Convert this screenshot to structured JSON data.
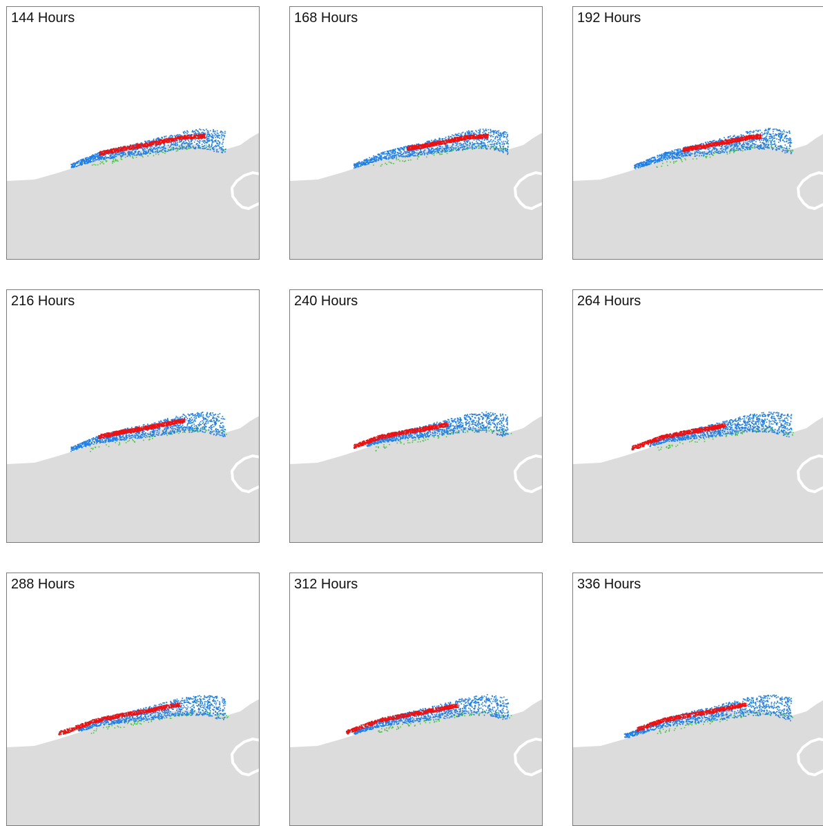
{
  "colors": {
    "land": "#dcdcdc",
    "water": "#ffffff",
    "frame": "#7a7a7a",
    "series_red": "#ee1111",
    "series_blue": "#1f7fe6",
    "series_green": "#3ec83e"
  },
  "panels": [
    {
      "label": "144 Hours",
      "red_extent": [
        0.36,
        0.78
      ],
      "blue_extent": [
        0.25,
        0.86
      ]
    },
    {
      "label": "168 Hours",
      "red_extent": [
        0.46,
        0.78
      ],
      "blue_extent": [
        0.25,
        0.86
      ]
    },
    {
      "label": "192 Hours",
      "red_extent": [
        0.43,
        0.74
      ],
      "blue_extent": [
        0.24,
        0.86
      ]
    },
    {
      "label": "216 Hours",
      "red_extent": [
        0.36,
        0.7
      ],
      "blue_extent": [
        0.25,
        0.86
      ]
    },
    {
      "label": "240 Hours",
      "red_extent": [
        0.25,
        0.62
      ],
      "blue_extent": [
        0.3,
        0.86
      ]
    },
    {
      "label": "264 Hours",
      "red_extent": [
        0.23,
        0.6
      ],
      "blue_extent": [
        0.3,
        0.86
      ]
    },
    {
      "label": "288 Hours",
      "red_extent": [
        0.2,
        0.68
      ],
      "blue_extent": [
        0.28,
        0.86
      ]
    },
    {
      "label": "312 Hours",
      "red_extent": [
        0.22,
        0.66
      ],
      "blue_extent": [
        0.25,
        0.86
      ]
    },
    {
      "label": "336 Hours",
      "red_extent": [
        0.25,
        0.68
      ],
      "blue_extent": [
        0.2,
        0.86
      ]
    }
  ]
}
